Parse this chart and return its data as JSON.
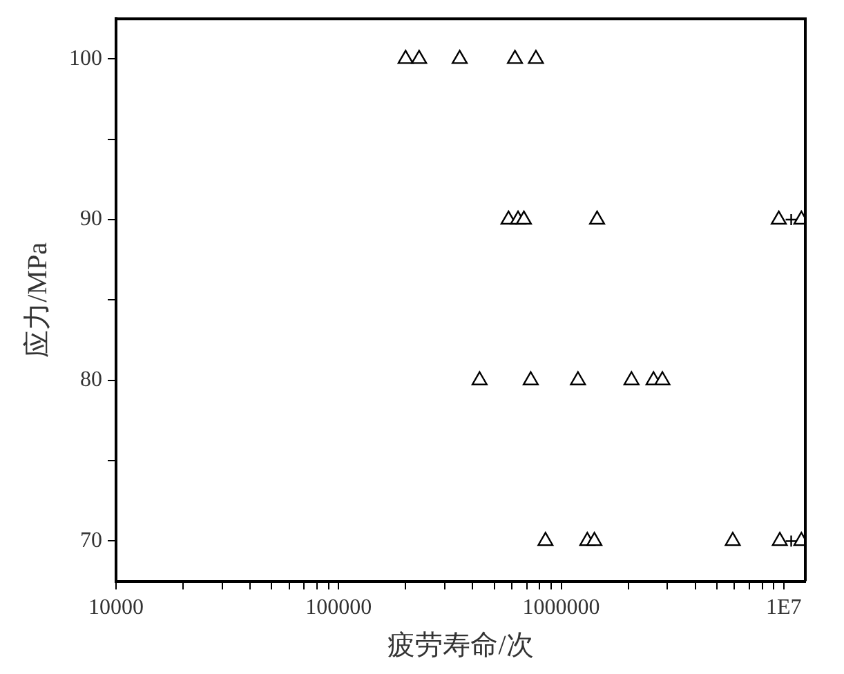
{
  "chart_data": {
    "type": "scatter",
    "xlabel": "疲劳寿命/次",
    "ylabel": "应力/MPa",
    "log": "x",
    "series": [
      {
        "marker": "triangle",
        "color": "#000000",
        "x": [
          200000,
          230000,
          350000,
          620000,
          770000,
          580000,
          640000,
          680000,
          1450000,
          9500000,
          12000000,
          430000,
          730000,
          1190000,
          2070000,
          2600000,
          2850000,
          850000,
          1310000,
          1410000,
          5900000,
          9600000,
          12000000
        ],
        "values": [
          100,
          100,
          100,
          100,
          100,
          90,
          90,
          90,
          90,
          90,
          90,
          80,
          80,
          80,
          80,
          80,
          80,
          70,
          70,
          70,
          70,
          70,
          70
        ]
      },
      {
        "marker": "cross",
        "color": "#000000",
        "x": [
          10800000,
          10800000
        ],
        "values": [
          90,
          70
        ]
      }
    ],
    "xlim": [
      10000,
      12500000
    ],
    "xticks": [
      10000,
      {
        "value": 20000,
        "label": null
      },
      {
        "value": 30000,
        "label": null
      },
      {
        "value": 40000,
        "label": null
      },
      {
        "value": 50000,
        "label": null
      },
      {
        "value": 60000,
        "label": null
      },
      {
        "value": 70000,
        "label": null
      },
      {
        "value": 80000,
        "label": null
      },
      {
        "value": 90000,
        "label": null
      },
      100000,
      {
        "value": 200000,
        "label": null
      },
      {
        "value": 300000,
        "label": null
      },
      {
        "value": 400000,
        "label": null
      },
      {
        "value": 500000,
        "label": null
      },
      {
        "value": 600000,
        "label": null
      },
      {
        "value": 700000,
        "label": null
      },
      {
        "value": 800000,
        "label": null
      },
      {
        "value": 900000,
        "label": null
      },
      1000000,
      {
        "value": 2000000,
        "label": null
      },
      {
        "value": 3000000,
        "label": null
      },
      {
        "value": 4000000,
        "label": null
      },
      {
        "value": 5000000,
        "label": null
      },
      {
        "value": 6000000,
        "label": null
      },
      {
        "value": 7000000,
        "label": null
      },
      {
        "value": 8000000,
        "label": null
      },
      {
        "value": 9000000,
        "label": null
      },
      {
        "value": 10000000,
        "label": "1E7"
      }
    ],
    "ylim": [
      67.5,
      102.5
    ],
    "yticks": [
      70,
      {
        "value": 75,
        "label": null
      },
      80,
      {
        "value": 85,
        "label": null
      },
      90,
      {
        "value": 95,
        "label": null
      },
      100
    ]
  }
}
